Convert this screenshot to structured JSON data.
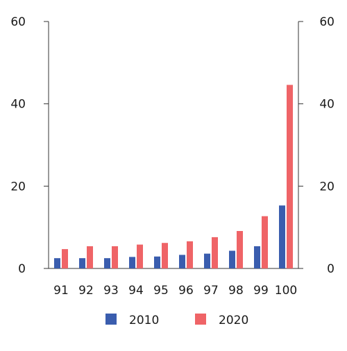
{
  "chart_data": {
    "type": "bar",
    "title": "",
    "xlabel": "",
    "ylabel": "",
    "categories": [
      "91",
      "92",
      "93",
      "94",
      "95",
      "96",
      "97",
      "98",
      "99",
      "100"
    ],
    "series": [
      {
        "name": "2010",
        "color": "#3a5dae",
        "values": [
          2.5,
          2.5,
          2.5,
          2.8,
          2.9,
          3.3,
          3.6,
          4.3,
          5.4,
          15.3
        ]
      },
      {
        "name": "2020",
        "color": "#ef6467",
        "values": [
          4.7,
          5.4,
          5.4,
          5.8,
          6.2,
          6.6,
          7.6,
          9.1,
          12.7,
          44.6
        ]
      }
    ],
    "ylim": [
      0,
      60
    ],
    "yticks": [
      "0",
      "20",
      "40",
      "60"
    ],
    "grid": false,
    "secondary_y_axis": true,
    "legend_position": "bottom"
  }
}
